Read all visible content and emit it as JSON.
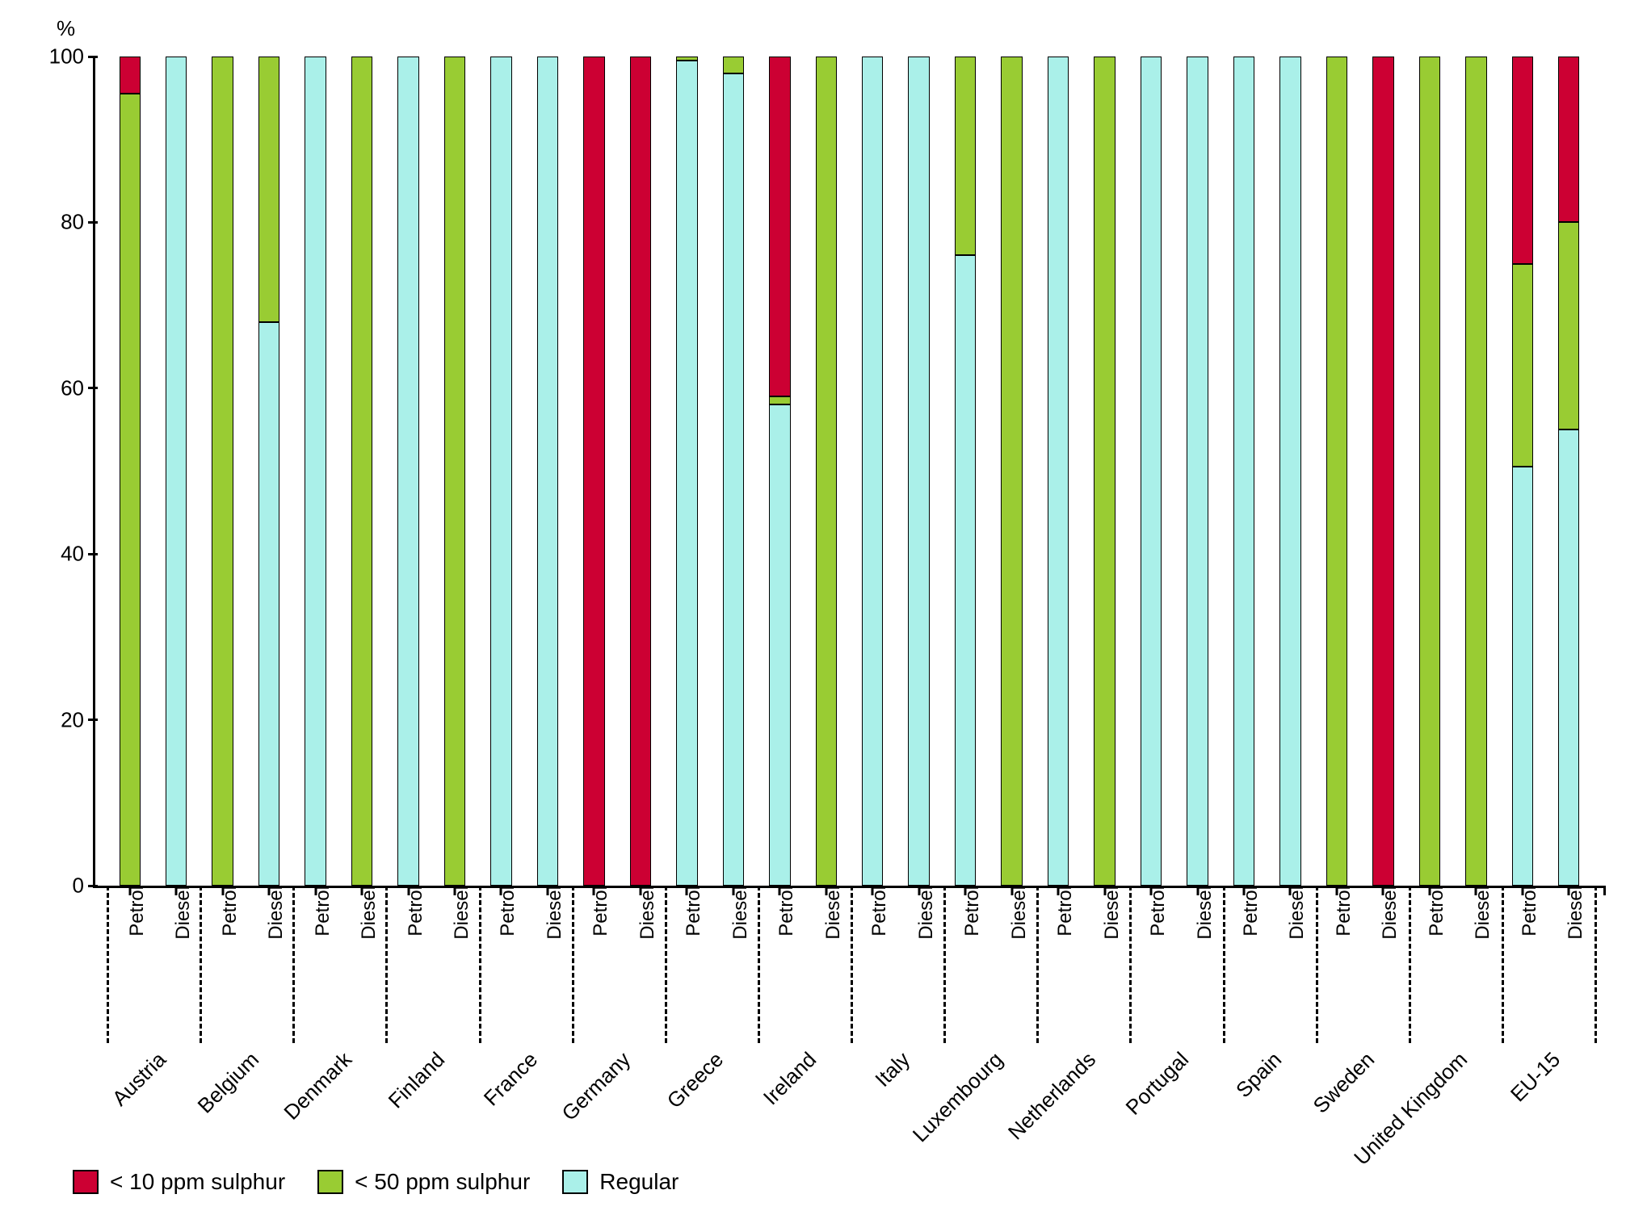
{
  "chart": {
    "type": "stacked-bar",
    "y_axis_title": "%",
    "ylim": [
      0,
      100
    ],
    "ytick_step": 20,
    "yticks": [
      0,
      20,
      40,
      60,
      80,
      100
    ],
    "background_color": "#ffffff",
    "axis_color": "#000000",
    "font_family": "Verdana",
    "title_fontsize": 26,
    "tick_fontsize": 26,
    "fuel_label_fontsize": 24,
    "country_label_fontsize": 26,
    "bar_width_ratio": 0.46,
    "colors": {
      "lt10": "#cc0033",
      "lt50": "#99cc33",
      "regular": "#aaf0e9"
    },
    "series_order": [
      "regular",
      "lt50",
      "lt10"
    ],
    "legend": [
      {
        "key": "lt10",
        "label": "< 10 ppm sulphur"
      },
      {
        "key": "lt50",
        "label": "< 50 ppm sulphur"
      },
      {
        "key": "regular",
        "label": "Regular"
      }
    ],
    "fuel_labels": {
      "petrol": "Petrol",
      "diesel": "Diesel"
    },
    "countries": [
      {
        "name": "Austria",
        "petrol": {
          "regular": 0,
          "lt50": 95.5,
          "lt10": 4.5
        },
        "diesel": {
          "regular": 100,
          "lt50": 0,
          "lt10": 0
        }
      },
      {
        "name": "Belgium",
        "petrol": {
          "regular": 0,
          "lt50": 100,
          "lt10": 0
        },
        "diesel": {
          "regular": 68,
          "lt50": 32,
          "lt10": 0
        }
      },
      {
        "name": "Denmark",
        "petrol": {
          "regular": 100,
          "lt50": 0,
          "lt10": 0
        },
        "diesel": {
          "regular": 0,
          "lt50": 100,
          "lt10": 0
        }
      },
      {
        "name": "Finland",
        "petrol": {
          "regular": 100,
          "lt50": 0,
          "lt10": 0
        },
        "diesel": {
          "regular": 0,
          "lt50": 100,
          "lt10": 0
        }
      },
      {
        "name": "France",
        "petrol": {
          "regular": 100,
          "lt50": 0,
          "lt10": 0
        },
        "diesel": {
          "regular": 100,
          "lt50": 0,
          "lt10": 0
        }
      },
      {
        "name": "Germany",
        "petrol": {
          "regular": 0,
          "lt50": 0,
          "lt10": 100
        },
        "diesel": {
          "regular": 0,
          "lt50": 0,
          "lt10": 100
        }
      },
      {
        "name": "Greece",
        "petrol": {
          "regular": 99.5,
          "lt50": 0.5,
          "lt10": 0
        },
        "diesel": {
          "regular": 98,
          "lt50": 2,
          "lt10": 0
        }
      },
      {
        "name": "Ireland",
        "petrol": {
          "regular": 58,
          "lt50": 1,
          "lt10": 41
        },
        "diesel": {
          "regular": 0,
          "lt50": 100,
          "lt10": 0
        }
      },
      {
        "name": "Italy",
        "petrol": {
          "regular": 100,
          "lt50": 0,
          "lt10": 0
        },
        "diesel": {
          "regular": 100,
          "lt50": 0,
          "lt10": 0
        }
      },
      {
        "name": "Luxembourg",
        "petrol": {
          "regular": 76,
          "lt50": 24,
          "lt10": 0
        },
        "diesel": {
          "regular": 0,
          "lt50": 100,
          "lt10": 0
        }
      },
      {
        "name": "Netherlands",
        "petrol": {
          "regular": 100,
          "lt50": 0,
          "lt10": 0
        },
        "diesel": {
          "regular": 0,
          "lt50": 100,
          "lt10": 0
        }
      },
      {
        "name": "Portugal",
        "petrol": {
          "regular": 100,
          "lt50": 0,
          "lt10": 0
        },
        "diesel": {
          "regular": 100,
          "lt50": 0,
          "lt10": 0
        }
      },
      {
        "name": "Spain",
        "petrol": {
          "regular": 100,
          "lt50": 0,
          "lt10": 0
        },
        "diesel": {
          "regular": 100,
          "lt50": 0,
          "lt10": 0
        }
      },
      {
        "name": "Sweden",
        "petrol": {
          "regular": 0,
          "lt50": 100,
          "lt10": 0
        },
        "diesel": {
          "regular": 0,
          "lt50": 0,
          "lt10": 100
        }
      },
      {
        "name": "United Kingdom",
        "petrol": {
          "regular": 0,
          "lt50": 100,
          "lt10": 0
        },
        "diesel": {
          "regular": 0,
          "lt50": 100,
          "lt10": 0
        }
      },
      {
        "name": "EU-15",
        "petrol": {
          "regular": 50.5,
          "lt50": 24.5,
          "lt10": 25
        },
        "diesel": {
          "regular": 55,
          "lt50": 25,
          "lt10": 20
        }
      }
    ]
  }
}
